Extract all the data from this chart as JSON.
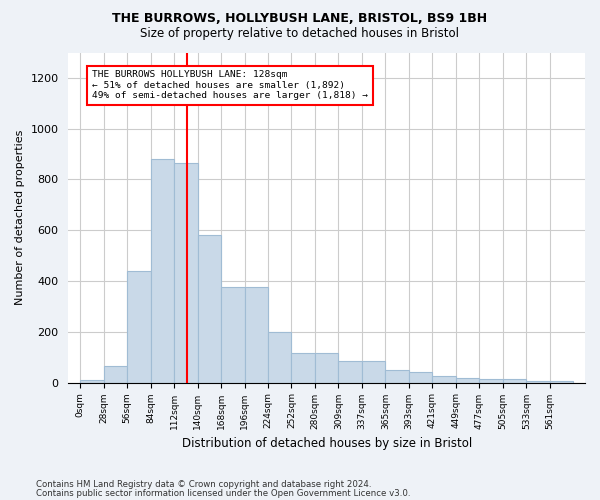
{
  "title1": "THE BURROWS, HOLLYBUSH LANE, BRISTOL, BS9 1BH",
  "title2": "Size of property relative to detached houses in Bristol",
  "xlabel": "Distribution of detached houses by size in Bristol",
  "ylabel": "Number of detached properties",
  "bar_color": "#c9d9e8",
  "bar_edge_color": "#a0bcd4",
  "categories": [
    "0sqm",
    "28sqm",
    "56sqm",
    "84sqm",
    "112sqm",
    "140sqm",
    "168sqm",
    "196sqm",
    "224sqm",
    "252sqm",
    "280sqm",
    "309sqm",
    "337sqm",
    "365sqm",
    "393sqm",
    "421sqm",
    "449sqm",
    "477sqm",
    "505sqm",
    "533sqm",
    "561sqm"
  ],
  "values": [
    12,
    65,
    440,
    880,
    865,
    580,
    375,
    375,
    200,
    115,
    115,
    85,
    85,
    50,
    40,
    25,
    18,
    15,
    15,
    8,
    5
  ],
  "ylim": [
    0,
    1300
  ],
  "yticks": [
    0,
    200,
    400,
    600,
    800,
    1000,
    1200
  ],
  "property_line_x": 128,
  "bin_width": 28,
  "annotation_line1": "THE BURROWS HOLLYBUSH LANE: 128sqm",
  "annotation_line2": "← 51% of detached houses are smaller (1,892)",
  "annotation_line3": "49% of semi-detached houses are larger (1,818) →",
  "footer1": "Contains HM Land Registry data © Crown copyright and database right 2024.",
  "footer2": "Contains public sector information licensed under the Open Government Licence v3.0.",
  "background_color": "#eef2f7",
  "plot_bg_color": "#ffffff",
  "grid_color": "#cccccc"
}
